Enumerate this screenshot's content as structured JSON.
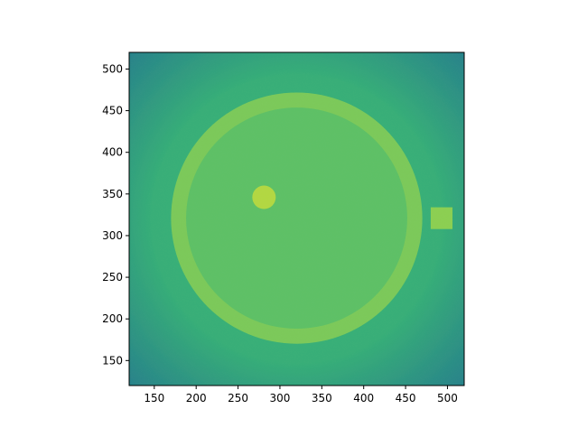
{
  "chart_data": {
    "type": "heatmap",
    "title": "",
    "xlabel": "",
    "ylabel": "",
    "xlim": [
      120,
      520
    ],
    "ylim": [
      120,
      520
    ],
    "xticks": [
      150,
      200,
      250,
      300,
      350,
      400,
      450,
      500
    ],
    "yticks": [
      150,
      200,
      250,
      300,
      350,
      400,
      450,
      500
    ],
    "colormap": "viridis",
    "colors": {
      "background_center": "#3db574",
      "background_edge": "#2a8a8a",
      "ring": "#7cc95a",
      "ring_interior": "#5ec066",
      "disc": "#b2d742",
      "square": "#8ccf52"
    },
    "features": [
      {
        "name": "ring",
        "shape": "annulus",
        "cx": 320,
        "cy": 321,
        "r_outer": 150,
        "r_inner": 132
      },
      {
        "name": "disc",
        "shape": "circle",
        "cx": 281,
        "cy": 346,
        "r": 14
      },
      {
        "name": "square",
        "shape": "rect",
        "x0": 480,
        "x1": 506,
        "y0": 308,
        "y1": 334
      }
    ]
  }
}
